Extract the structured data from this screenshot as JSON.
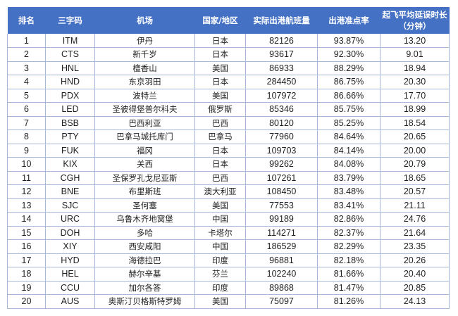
{
  "headers": {
    "rank": "排名",
    "code": "三字码",
    "airport": "机场",
    "country": "国家/地区",
    "flights": "实际出港航班量",
    "ontime": "出港准点率",
    "delay_line1": "起飞平均延误时长",
    "delay_line2": "（分钟）"
  },
  "colors": {
    "header_bg": "#4571c4",
    "header_text": "#ffffff",
    "grid_line": "#a7b8db"
  },
  "rows": [
    {
      "rank": "1",
      "code": "ITM",
      "airport": "伊丹",
      "country": "日本",
      "flights": "82126",
      "ontime": "93.87%",
      "delay": "13.20"
    },
    {
      "rank": "2",
      "code": "CTS",
      "airport": "新千岁",
      "country": "日本",
      "flights": "93617",
      "ontime": "92.30%",
      "delay": "9.01"
    },
    {
      "rank": "3",
      "code": "HNL",
      "airport": "檀香山",
      "country": "美国",
      "flights": "86933",
      "ontime": "88.29%",
      "delay": "18.94"
    },
    {
      "rank": "4",
      "code": "HND",
      "airport": "东京羽田",
      "country": "日本",
      "flights": "284450",
      "ontime": "86.75%",
      "delay": "20.30"
    },
    {
      "rank": "5",
      "code": "PDX",
      "airport": "波特兰",
      "country": "美国",
      "flights": "107972",
      "ontime": "86.66%",
      "delay": "17.70"
    },
    {
      "rank": "6",
      "code": "LED",
      "airport": "圣彼得堡普尔科夫",
      "country": "俄罗斯",
      "flights": "85346",
      "ontime": "85.75%",
      "delay": "18.99"
    },
    {
      "rank": "7",
      "code": "BSB",
      "airport": "巴西利亚",
      "country": "巴西",
      "flights": "80120",
      "ontime": "85.25%",
      "delay": "18.54"
    },
    {
      "rank": "8",
      "code": "PTY",
      "airport": "巴拿马城托库门",
      "country": "巴拿马",
      "flights": "77960",
      "ontime": "84.64%",
      "delay": "20.65"
    },
    {
      "rank": "9",
      "code": "FUK",
      "airport": "福冈",
      "country": "日本",
      "flights": "109703",
      "ontime": "84.14%",
      "delay": "20.00"
    },
    {
      "rank": "10",
      "code": "KIX",
      "airport": "关西",
      "country": "日本",
      "flights": "99262",
      "ontime": "84.08%",
      "delay": "20.79"
    },
    {
      "rank": "11",
      "code": "CGH",
      "airport": "圣保罗孔戈尼亚斯",
      "country": "巴西",
      "flights": "107261",
      "ontime": "83.79%",
      "delay": "18.65"
    },
    {
      "rank": "12",
      "code": "BNE",
      "airport": "布里斯班",
      "country": "澳大利亚",
      "flights": "108450",
      "ontime": "83.48%",
      "delay": "20.57"
    },
    {
      "rank": "13",
      "code": "SJC",
      "airport": "圣何塞",
      "country": "美国",
      "flights": "77553",
      "ontime": "83.41%",
      "delay": "21.11"
    },
    {
      "rank": "14",
      "code": "URC",
      "airport": "乌鲁木齐地窝堡",
      "country": "中国",
      "flights": "99189",
      "ontime": "82.86%",
      "delay": "24.76"
    },
    {
      "rank": "15",
      "code": "DOH",
      "airport": "多哈",
      "country": "卡塔尔",
      "flights": "114271",
      "ontime": "82.37%",
      "delay": "21.64"
    },
    {
      "rank": "16",
      "code": "XIY",
      "airport": "西安咸阳",
      "country": "中国",
      "flights": "186529",
      "ontime": "82.29%",
      "delay": "23.35"
    },
    {
      "rank": "17",
      "code": "HYD",
      "airport": "海德拉巴",
      "country": "印度",
      "flights": "96881",
      "ontime": "82.18%",
      "delay": "20.26"
    },
    {
      "rank": "18",
      "code": "HEL",
      "airport": "赫尔辛基",
      "country": "芬兰",
      "flights": "102240",
      "ontime": "81.66%",
      "delay": "20.40"
    },
    {
      "rank": "19",
      "code": "CCU",
      "airport": "加尔各答",
      "country": "印度",
      "flights": "89868",
      "ontime": "81.47%",
      "delay": "20.85"
    },
    {
      "rank": "20",
      "code": "AUS",
      "airport": "奥斯汀贝格斯特罗姆",
      "country": "美国",
      "flights": "75097",
      "ontime": "81.26%",
      "delay": "24.13"
    }
  ]
}
